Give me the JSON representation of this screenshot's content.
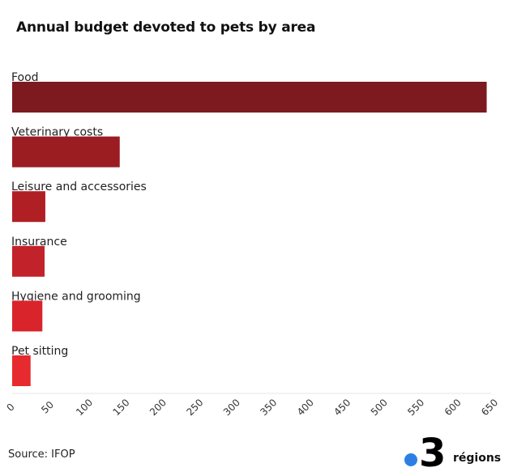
{
  "title": "Annual budget devoted to pets by area",
  "source": "Source: IFOP",
  "logo": {
    "number": "3",
    "text": "régions",
    "dot_color": "#2d7fe3"
  },
  "chart_data": {
    "type": "bar",
    "orientation": "horizontal",
    "categories": [
      "Food",
      "Veterinary costs",
      "Leisure and accessories",
      "Insurance",
      "Hygiene and grooming",
      "Pet sitting"
    ],
    "values": [
      644,
      146,
      45,
      44,
      41,
      25
    ],
    "colors": [
      "#7d1a1f",
      "#9b1d22",
      "#b01f24",
      "#c2222a",
      "#d9242b",
      "#e62a2f"
    ],
    "xlim": [
      0,
      650
    ],
    "xticks": [
      0,
      50,
      100,
      150,
      200,
      250,
      300,
      350,
      400,
      450,
      500,
      550,
      600,
      650
    ],
    "grid": false,
    "title": "Annual budget devoted to pets by area",
    "xlabel": "",
    "ylabel": ""
  }
}
